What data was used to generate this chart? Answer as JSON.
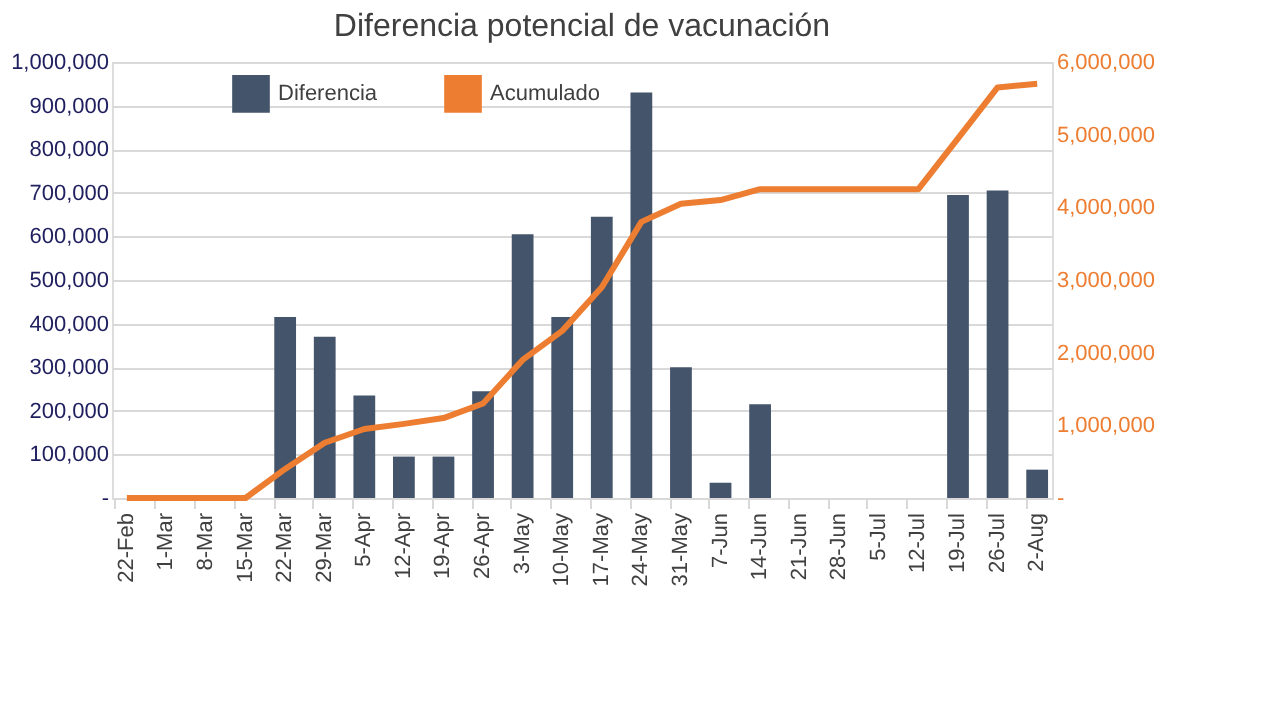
{
  "chart_data": {
    "type": "bar",
    "title": "Diferencia potencial de vacunación",
    "categories": [
      "22-Feb",
      "1-Mar",
      "8-Mar",
      "15-Mar",
      "22-Mar",
      "29-Mar",
      "5-Apr",
      "12-Apr",
      "19-Apr",
      "26-Apr",
      "3-May",
      "10-May",
      "17-May",
      "24-May",
      "31-May",
      "7-Jun",
      "14-Jun",
      "21-Jun",
      "28-Jun",
      "5-Jul",
      "12-Jul",
      "19-Jul",
      "26-Jul",
      "2-Aug"
    ],
    "series": [
      {
        "name": "Diferencia",
        "color": "#44546a",
        "values": [
          0,
          0,
          0,
          0,
          415000,
          370000,
          235000,
          95000,
          95000,
          245000,
          605000,
          415000,
          645000,
          930000,
          300000,
          35000,
          215000,
          0,
          0,
          0,
          0,
          695000,
          705000,
          65000
        ]
      },
      {
        "name": "Acumulado",
        "type": "line",
        "axis": "y2",
        "color": "#ed7d31",
        "values": [
          0,
          0,
          0,
          0,
          400000,
          760000,
          950000,
          1020000,
          1100000,
          1300000,
          1900000,
          2300000,
          2900000,
          3800000,
          4050000,
          4100000,
          4250000,
          4250000,
          4250000,
          4250000,
          4250000,
          4950000,
          5650000,
          5700000
        ]
      }
    ],
    "ylim": [
      0,
      1000000
    ],
    "yticks": [
      {
        "value": 0,
        "label": "-"
      },
      {
        "value": 100000,
        "label": "100,000"
      },
      {
        "value": 200000,
        "label": "200,000"
      },
      {
        "value": 300000,
        "label": "300,000"
      },
      {
        "value": 400000,
        "label": "400,000"
      },
      {
        "value": 500000,
        "label": "500,000"
      },
      {
        "value": 600000,
        "label": "600,000"
      },
      {
        "value": 700000,
        "label": "700,000"
      },
      {
        "value": 800000,
        "label": "800,000"
      },
      {
        "value": 900000,
        "label": "900,000"
      },
      {
        "value": 1000000,
        "label": "1,000,000"
      }
    ],
    "y2lim": [
      0,
      6000000
    ],
    "y2ticks": [
      {
        "value": 0,
        "label": "-"
      },
      {
        "value": 1000000,
        "label": "1,000,000"
      },
      {
        "value": 2000000,
        "label": "2,000,000"
      },
      {
        "value": 3000000,
        "label": "3,000,000"
      },
      {
        "value": 4000000,
        "label": "4,000,000"
      },
      {
        "value": 5000000,
        "label": "5,000,000"
      },
      {
        "value": 6000000,
        "label": "6,000,000"
      }
    ],
    "grid": "y",
    "legend": "top left"
  }
}
